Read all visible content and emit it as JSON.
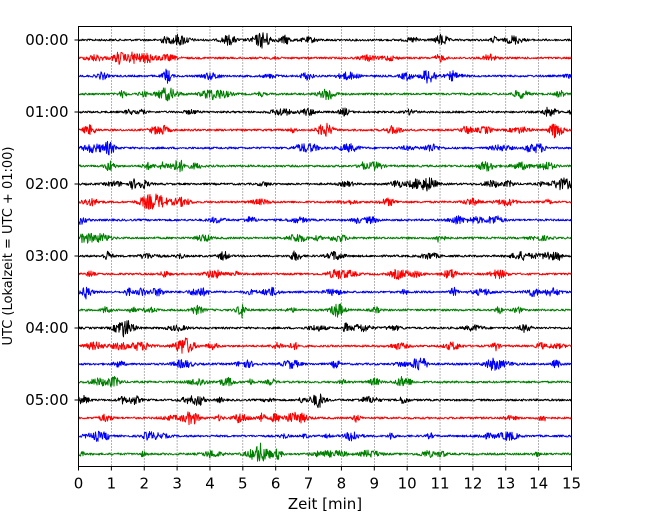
{
  "chart_data": {
    "type": "line",
    "title": "",
    "xlabel": "Zeit  [min]",
    "ylabel": "UTC (Lokalzeit = UTC + 01:00)",
    "xlim": [
      0,
      15
    ],
    "x_ticks": [
      "0",
      "1",
      "2",
      "3",
      "4",
      "5",
      "6",
      "7",
      "8",
      "9",
      "10",
      "11",
      "12",
      "13",
      "14",
      "15"
    ],
    "y_ticks": [
      "00:00",
      "01:00",
      "02:00",
      "03:00",
      "04:00",
      "05:00"
    ],
    "grid": "vertical dotted at each minute",
    "trace_interval_min": 15,
    "trace_colors": [
      "#000000",
      "#ff0000",
      "#0000ff",
      "#008000"
    ],
    "traces": [
      {
        "start": "00:00"
      },
      {
        "start": "00:15"
      },
      {
        "start": "00:30"
      },
      {
        "start": "00:45"
      },
      {
        "start": "01:00"
      },
      {
        "start": "01:15"
      },
      {
        "start": "01:30"
      },
      {
        "start": "01:45"
      },
      {
        "start": "02:00"
      },
      {
        "start": "02:15"
      },
      {
        "start": "02:30"
      },
      {
        "start": "02:45"
      },
      {
        "start": "03:00"
      },
      {
        "start": "03:15"
      },
      {
        "start": "03:30"
      },
      {
        "start": "03:45"
      },
      {
        "start": "04:00"
      },
      {
        "start": "04:15"
      },
      {
        "start": "04:30"
      },
      {
        "start": "04:45"
      },
      {
        "start": "05:00"
      },
      {
        "start": "05:15"
      },
      {
        "start": "05:30"
      },
      {
        "start": "05:45"
      }
    ]
  }
}
